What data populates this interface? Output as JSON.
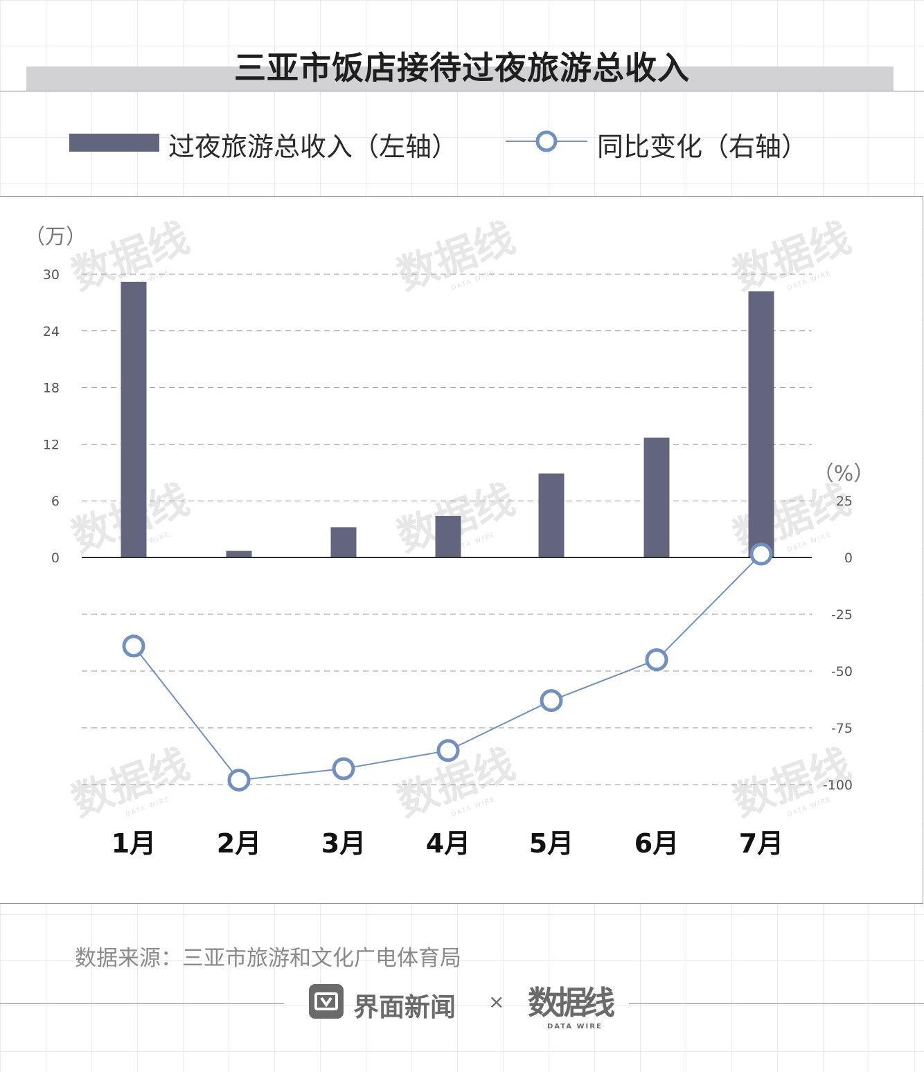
{
  "chart_data": {
    "type": "bar+line",
    "title": "三亚市饭店接待过夜旅游总收入",
    "categories": [
      "1月",
      "2月",
      "3月",
      "4月",
      "5月",
      "6月",
      "7月"
    ],
    "series": [
      {
        "name": "过夜旅游总收入（左轴）",
        "type": "bar",
        "axis": "left",
        "color": "#63657e",
        "values": [
          29.2,
          0.7,
          3.2,
          4.4,
          8.9,
          12.7,
          28.2
        ]
      },
      {
        "name": "同比变化（右轴）",
        "type": "line",
        "axis": "right",
        "color": "#7190bd",
        "values": [
          -39,
          -98,
          -93,
          -85,
          -63,
          -45,
          1.5
        ]
      }
    ],
    "y_left": {
      "unit": "（万）",
      "ticks": [
        "30",
        "24",
        "18",
        "12",
        "6",
        "0"
      ],
      "range": [
        0,
        30
      ]
    },
    "y_right": {
      "unit": "（%）",
      "ticks": [
        "25",
        "0",
        "-25",
        "-50",
        "-75",
        "-100"
      ],
      "range": [
        -100,
        25
      ]
    },
    "grid": "dashed-horizontal",
    "legend": "top"
  },
  "legend": {
    "bar_label": "过夜旅游总收入（左轴）",
    "line_label": "同比变化（右轴）"
  },
  "footer": {
    "source": "数据来源：三亚市旅游和文化广电体育局",
    "brand": "界面新闻",
    "times": "×",
    "logo_text": "数据线",
    "logo_sub": "DATA WIRE"
  },
  "watermark": {
    "text": "数据线",
    "sub": "DATA WIRE"
  }
}
